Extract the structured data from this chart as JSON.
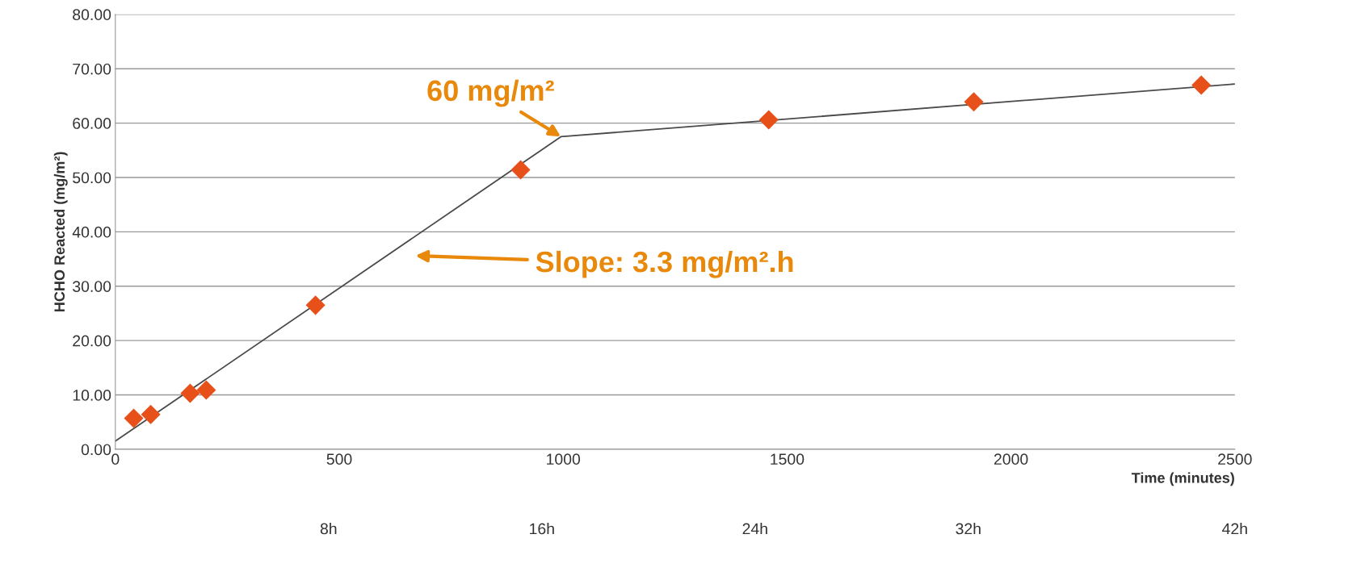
{
  "chart_data": {
    "type": "scatter",
    "xlabel": "Time (minutes)",
    "ylabel": "HCHO Reacted (mg/m²)",
    "xlim": [
      0,
      2500
    ],
    "xticks": [
      0,
      500,
      1000,
      1500,
      2000,
      2500
    ],
    "x2lim": [
      0,
      42
    ],
    "x2ticks": [
      {
        "value": 8,
        "label": "8h"
      },
      {
        "value": 16,
        "label": "16h"
      },
      {
        "value": 24,
        "label": "24h"
      },
      {
        "value": 32,
        "label": "32h"
      },
      {
        "value": 42,
        "label": "42h"
      }
    ],
    "ylim": [
      0,
      80
    ],
    "yticks": [
      {
        "value": 0,
        "label": "0.00"
      },
      {
        "value": 10,
        "label": "10.00"
      },
      {
        "value": 20,
        "label": "20.00"
      },
      {
        "value": 30,
        "label": "30.00"
      },
      {
        "value": 40,
        "label": "40.00"
      },
      {
        "value": 50,
        "label": "50.00"
      },
      {
        "value": 60,
        "label": "60.00"
      },
      {
        "value": 70,
        "label": "70.00"
      },
      {
        "value": 80,
        "label": "80.00"
      }
    ],
    "grid": "y",
    "series": [
      {
        "marker": "diamond",
        "color": "#e8501a",
        "x": [
          41,
          79,
          167,
          203,
          447,
          905,
          1459,
          1917,
          2425
        ],
        "values": [
          5.7,
          6.4,
          10.3,
          10.9,
          26.5,
          51.4,
          60.6,
          63.9,
          67.0
        ]
      },
      {
        "type": "line",
        "color": "#4a4a4a",
        "x": [
          0,
          995,
          2500
        ],
        "values": [
          1.5,
          57.5,
          67.2
        ]
      }
    ],
    "annotations": [
      {
        "text": "60 mg/m²",
        "x": 995,
        "y": 57.5
      },
      "Slope: 3.3 mg/m².h"
    ]
  }
}
